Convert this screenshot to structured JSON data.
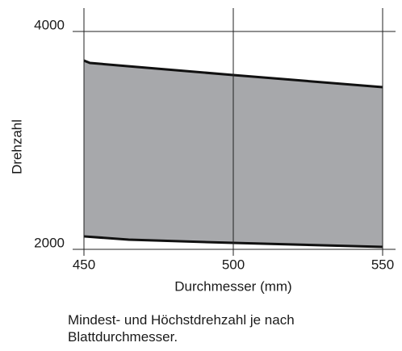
{
  "chart_data": {
    "type": "range-area",
    "x_label": "Durchmesser (mm)",
    "y_label": "Drehzahl",
    "caption": "Mindest- und Höchstdrehzahl je nach Blattdurchmesser.",
    "x": [
      450,
      452,
      465,
      500,
      550
    ],
    "series": [
      {
        "color": "#111111",
        "values": [
          2119,
          2115,
          2089,
          2059,
          2022
        ]
      },
      {
        "color": "#111111",
        "values": [
          3733,
          3711,
          3681,
          3600,
          3489
        ]
      }
    ],
    "fill": "#a7a8ab",
    "xlim": [
      450,
      550
    ],
    "ylim": [
      2000,
      4215
    ],
    "xticks": [
      450,
      500,
      550
    ],
    "yticks": [
      2000,
      4000
    ],
    "grid": true
  }
}
